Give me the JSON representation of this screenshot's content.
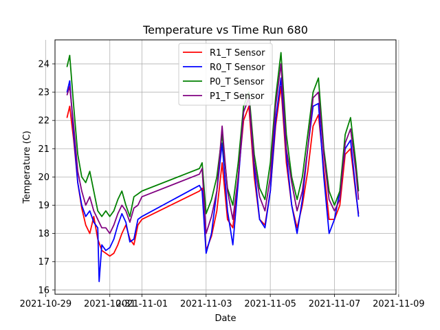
{
  "chart_data": {
    "type": "line",
    "title": "Temperature vs Time Run 680",
    "xlabel": "Date",
    "ylabel": "Temperature (C)",
    "grid": true,
    "legend_position": "top-center",
    "xlim": [
      "2021-10-29T07:00",
      "2021-11-08T22:00"
    ],
    "ylim": [
      15.85,
      24.85
    ],
    "x_ticks": [
      "2021-10-29",
      "2021-10-31",
      "2021-11-01",
      "2021-11-03",
      "2021-11-05",
      "2021-11-07",
      "2021-11-09"
    ],
    "x_tick_labels": [
      "2021-10-29",
      "2021-10-31",
      "2021-11-01",
      "2021-11-03",
      "2021-11-05",
      "2021-11-07",
      "2021-11-09"
    ],
    "y_ticks": [
      16,
      17,
      18,
      19,
      20,
      21,
      22,
      23,
      24
    ],
    "series": [
      {
        "name": "R1_T Sensor",
        "color": "#ff0000",
        "x": [
          "2021-10-29T16:00",
          "2021-10-29T18:00",
          "2021-10-29T21:00",
          "2021-10-30T00:00",
          "2021-10-30T03:00",
          "2021-10-30T06:00",
          "2021-10-30T09:00",
          "2021-10-30T12:00",
          "2021-10-30T15:00",
          "2021-10-30T18:00",
          "2021-10-30T21:00",
          "2021-10-31T00:00",
          "2021-10-31T03:00",
          "2021-10-31T06:00",
          "2021-10-31T09:00",
          "2021-10-31T12:00",
          "2021-10-31T15:00",
          "2021-10-31T18:00",
          "2021-10-31T21:00",
          "2021-11-01T00:00",
          "2021-11-02T19:00",
          "2021-11-02T21:00",
          "2021-11-03T00:00",
          "2021-11-03T04:00",
          "2021-11-03T08:00",
          "2021-11-03T12:00",
          "2021-11-03T16:00",
          "2021-11-03T20:00",
          "2021-11-04T00:00",
          "2021-11-04T04:00",
          "2021-11-04T08:00",
          "2021-11-04T12:00",
          "2021-11-04T16:00",
          "2021-11-04T20:00",
          "2021-11-05T00:00",
          "2021-11-05T04:00",
          "2021-11-05T08:00",
          "2021-11-05T12:00",
          "2021-11-05T16:00",
          "2021-11-05T20:00",
          "2021-11-06T00:00",
          "2021-11-06T04:00",
          "2021-11-06T08:00",
          "2021-11-06T12:00",
          "2021-11-06T16:00",
          "2021-11-06T20:00",
          "2021-11-07T00:00",
          "2021-11-07T04:00",
          "2021-11-07T08:00",
          "2021-11-07T12:00",
          "2021-11-07T16:00",
          "2021-11-07T18:00"
        ],
        "values": [
          22.1,
          22.5,
          21.3,
          19.8,
          18.9,
          18.3,
          18.0,
          18.6,
          17.8,
          17.4,
          17.3,
          17.2,
          17.3,
          17.6,
          18.0,
          18.3,
          17.8,
          17.6,
          18.3,
          18.5,
          19.5,
          19.6,
          17.4,
          17.9,
          18.8,
          20.5,
          18.5,
          18.2,
          20.0,
          22.0,
          22.5,
          20.0,
          18.5,
          18.3,
          19.5,
          21.8,
          23.2,
          20.5,
          19.0,
          18.2,
          19.0,
          20.2,
          21.8,
          22.2,
          20.3,
          18.5,
          18.5,
          19.0,
          20.8,
          21.0,
          19.4,
          18.7
        ]
      },
      {
        "name": "R0_T Sensor",
        "color": "#0000ff",
        "x": [
          "2021-10-29T16:00",
          "2021-10-29T18:00",
          "2021-10-29T21:00",
          "2021-10-30T00:00",
          "2021-10-30T03:00",
          "2021-10-30T06:00",
          "2021-10-30T09:00",
          "2021-10-30T12:00",
          "2021-10-30T15:00",
          "2021-10-30T16:00",
          "2021-10-30T18:00",
          "2021-10-30T21:00",
          "2021-10-31T00:00",
          "2021-10-31T03:00",
          "2021-10-31T06:00",
          "2021-10-31T09:00",
          "2021-10-31T12:00",
          "2021-10-31T15:00",
          "2021-10-31T18:00",
          "2021-10-31T21:00",
          "2021-11-01T00:00",
          "2021-11-02T19:00",
          "2021-11-02T21:00",
          "2021-11-03T00:00",
          "2021-11-03T04:00",
          "2021-11-03T08:00",
          "2021-11-03T12:00",
          "2021-11-03T16:00",
          "2021-11-03T20:00",
          "2021-11-04T00:00",
          "2021-11-04T04:00",
          "2021-11-04T08:00",
          "2021-11-04T12:00",
          "2021-11-04T16:00",
          "2021-11-04T20:00",
          "2021-11-05T00:00",
          "2021-11-05T04:00",
          "2021-11-05T08:00",
          "2021-11-05T12:00",
          "2021-11-05T16:00",
          "2021-11-05T20:00",
          "2021-11-06T00:00",
          "2021-11-06T04:00",
          "2021-11-06T08:00",
          "2021-11-06T12:00",
          "2021-11-06T16:00",
          "2021-11-06T20:00",
          "2021-11-07T00:00",
          "2021-11-07T04:00",
          "2021-11-07T08:00",
          "2021-11-07T12:00",
          "2021-11-07T16:00",
          "2021-11-07T18:00"
        ],
        "values": [
          23.0,
          23.4,
          21.5,
          19.8,
          19.0,
          18.6,
          18.8,
          18.4,
          18.2,
          16.3,
          17.6,
          17.4,
          17.5,
          17.8,
          18.3,
          18.7,
          18.4,
          17.7,
          17.8,
          18.5,
          18.6,
          19.7,
          19.5,
          17.3,
          18.0,
          19.5,
          21.2,
          18.8,
          17.6,
          19.8,
          22.3,
          22.8,
          20.3,
          18.5,
          18.2,
          19.5,
          22.0,
          23.5,
          20.8,
          19.0,
          18.0,
          19.2,
          21.0,
          22.5,
          22.6,
          20.0,
          18.0,
          18.5,
          19.5,
          21.0,
          21.3,
          19.5,
          18.6
        ]
      },
      {
        "name": "P0_T Sensor",
        "color": "#008000",
        "x": [
          "2021-10-29T16:00",
          "2021-10-29T18:00",
          "2021-10-29T21:00",
          "2021-10-30T00:00",
          "2021-10-30T03:00",
          "2021-10-30T06:00",
          "2021-10-30T09:00",
          "2021-10-30T12:00",
          "2021-10-30T15:00",
          "2021-10-30T18:00",
          "2021-10-30T21:00",
          "2021-10-31T00:00",
          "2021-10-31T03:00",
          "2021-10-31T06:00",
          "2021-10-31T09:00",
          "2021-10-31T12:00",
          "2021-10-31T15:00",
          "2021-10-31T18:00",
          "2021-10-31T21:00",
          "2021-11-01T00:00",
          "2021-11-02T19:00",
          "2021-11-02T21:00",
          "2021-11-03T00:00",
          "2021-11-03T04:00",
          "2021-11-03T08:00",
          "2021-11-03T12:00",
          "2021-11-03T16:00",
          "2021-11-03T20:00",
          "2021-11-04T00:00",
          "2021-11-04T04:00",
          "2021-11-04T08:00",
          "2021-11-04T12:00",
          "2021-11-04T16:00",
          "2021-11-04T20:00",
          "2021-11-05T00:00",
          "2021-11-05T04:00",
          "2021-11-05T08:00",
          "2021-11-05T12:00",
          "2021-11-05T16:00",
          "2021-11-05T20:00",
          "2021-11-06T00:00",
          "2021-11-06T04:00",
          "2021-11-06T08:00",
          "2021-11-06T12:00",
          "2021-11-06T16:00",
          "2021-11-06T20:00",
          "2021-11-07T00:00",
          "2021-11-07T04:00",
          "2021-11-07T08:00",
          "2021-11-07T12:00",
          "2021-11-07T16:00",
          "2021-11-07T18:00"
        ],
        "values": [
          23.9,
          24.3,
          22.5,
          20.8,
          20.0,
          19.8,
          20.2,
          19.5,
          18.8,
          18.6,
          18.8,
          18.6,
          18.8,
          19.2,
          19.5,
          19.0,
          18.6,
          19.3,
          19.4,
          19.5,
          20.3,
          20.5,
          18.7,
          19.2,
          20.0,
          21.5,
          19.6,
          19.0,
          20.5,
          22.5,
          23.0,
          20.8,
          19.6,
          19.2,
          20.5,
          22.8,
          24.4,
          21.5,
          20.0,
          19.2,
          20.0,
          21.5,
          23.0,
          23.5,
          21.0,
          19.5,
          19.0,
          19.5,
          21.5,
          22.1,
          20.5,
          19.5
        ]
      },
      {
        "name": "P1_T Sensor",
        "color": "#800080",
        "x": [
          "2021-10-29T16:00",
          "2021-10-29T18:00",
          "2021-10-29T21:00",
          "2021-10-30T00:00",
          "2021-10-30T03:00",
          "2021-10-30T06:00",
          "2021-10-30T09:00",
          "2021-10-30T12:00",
          "2021-10-30T15:00",
          "2021-10-30T18:00",
          "2021-10-30T21:00",
          "2021-10-31T00:00",
          "2021-10-31T03:00",
          "2021-10-31T06:00",
          "2021-10-31T09:00",
          "2021-10-31T12:00",
          "2021-10-31T15:00",
          "2021-10-31T18:00",
          "2021-10-31T21:00",
          "2021-11-01T00:00",
          "2021-11-02T19:00",
          "2021-11-02T21:00",
          "2021-11-03T00:00",
          "2021-11-03T04:00",
          "2021-11-03T08:00",
          "2021-11-03T12:00",
          "2021-11-03T16:00",
          "2021-11-03T20:00",
          "2021-11-04T00:00",
          "2021-11-04T04:00",
          "2021-11-04T08:00",
          "2021-11-04T12:00",
          "2021-11-04T16:00",
          "2021-11-04T20:00",
          "2021-11-05T00:00",
          "2021-11-05T04:00",
          "2021-11-05T08:00",
          "2021-11-05T12:00",
          "2021-11-05T16:00",
          "2021-11-05T20:00",
          "2021-11-06T00:00",
          "2021-11-06T04:00",
          "2021-11-06T08:00",
          "2021-11-06T12:00",
          "2021-11-06T16:00",
          "2021-11-06T20:00",
          "2021-11-07T00:00",
          "2021-11-07T04:00",
          "2021-11-07T08:00",
          "2021-11-07T12:00",
          "2021-11-07T16:00",
          "2021-11-07T18:00"
        ],
        "values": [
          22.9,
          23.2,
          21.8,
          20.2,
          19.5,
          19.0,
          19.3,
          18.8,
          18.5,
          18.2,
          18.2,
          18.0,
          18.3,
          18.7,
          19.0,
          18.8,
          18.4,
          18.9,
          19.0,
          19.3,
          20.1,
          20.3,
          18.0,
          18.6,
          19.5,
          21.8,
          19.5,
          18.5,
          20.0,
          22.3,
          22.8,
          20.5,
          19.3,
          18.8,
          20.0,
          22.5,
          24.0,
          21.0,
          19.8,
          18.8,
          19.5,
          21.0,
          22.8,
          23.0,
          20.8,
          19.2,
          18.8,
          19.2,
          21.2,
          21.7,
          20.2,
          19.2
        ]
      }
    ]
  }
}
